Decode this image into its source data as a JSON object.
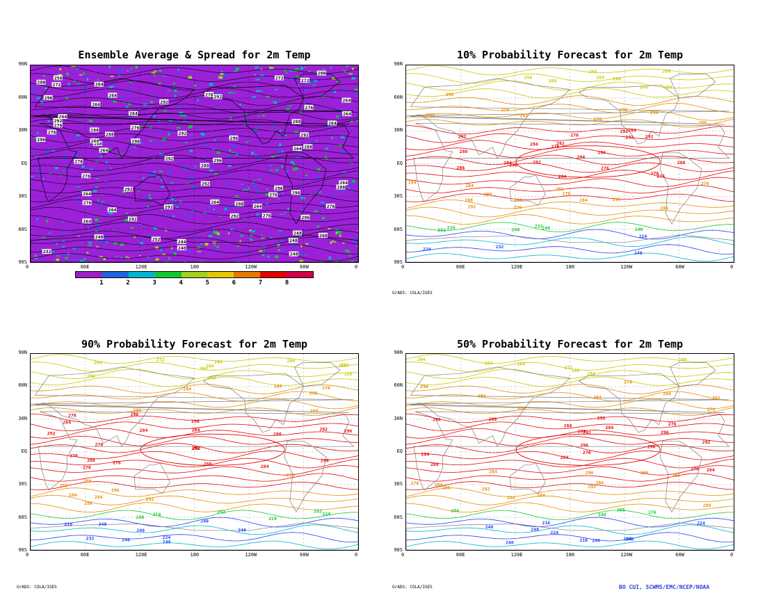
{
  "panels": [
    {
      "title": "Ensemble Average & Spread for 2m Temp",
      "kind": "spread"
    },
    {
      "title": "10% Probability Forecast for 2m Temp",
      "kind": "prob"
    },
    {
      "title": "90% Probability Forecast for 2m Temp",
      "kind": "prob"
    },
    {
      "title": "50% Probability Forecast for 2m Temp",
      "kind": "prob"
    }
  ],
  "lat_labels": [
    "90N",
    "60N",
    "30N",
    "EQ",
    "30S",
    "60S",
    "90S"
  ],
  "lon_labels": [
    "0",
    "60E",
    "120E",
    "180",
    "120W",
    "60W",
    "0"
  ],
  "colorbar": {
    "labels": [
      "1",
      "2",
      "3",
      "4",
      "5",
      "6",
      "7",
      "8"
    ],
    "colors": [
      "#a020c8",
      "#1e64e6",
      "#00b4d2",
      "#12c832",
      "#a0d21e",
      "#e6c800",
      "#e67800",
      "#e60000",
      "#d2004a"
    ]
  },
  "contour_labels": {
    "spread": [
      "272",
      "280",
      "256",
      "284",
      "276",
      "264",
      "288",
      "292",
      "296",
      "252",
      "244",
      "232",
      "224",
      "240",
      "248",
      "260"
    ],
    "prob": [
      "272",
      "280",
      "264",
      "256",
      "284",
      "292",
      "296",
      "288",
      "276",
      "248",
      "240",
      "232",
      "224",
      "216"
    ]
  },
  "grads_tag": "GrADS: COLA/IGES",
  "credit": "BO CUI, SCWMS/EMC/NCEP/NOAA",
  "colors": {
    "spread_bg": "#9b21d8",
    "spread_contour": "#000000",
    "warm": "#e60000",
    "mid": "#e68c00",
    "cool": "#c8c800",
    "cold": "#12c832",
    "colder": "#00b4d2",
    "coldest": "#1e3cff"
  }
}
